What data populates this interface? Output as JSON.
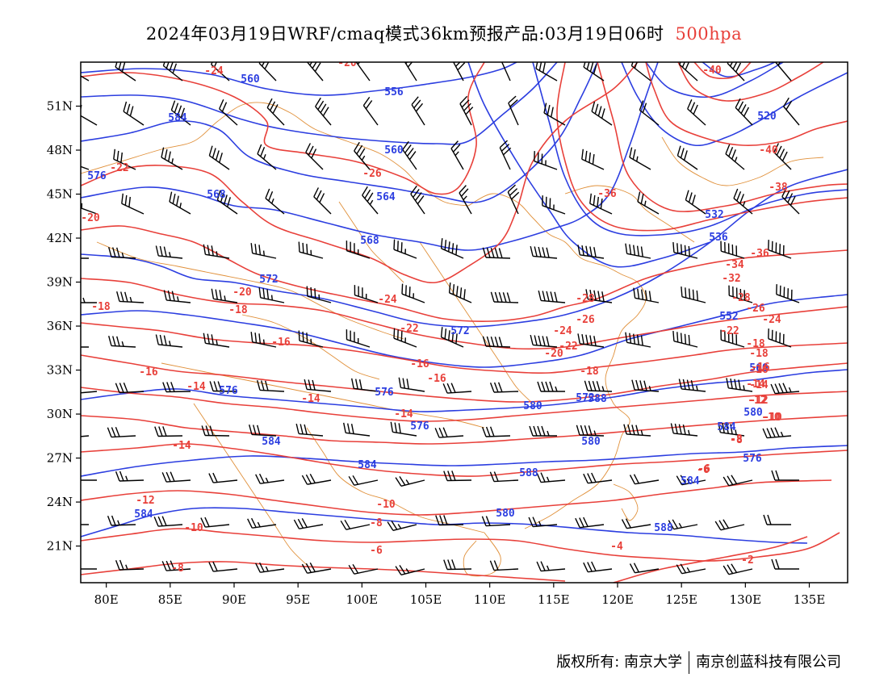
{
  "title": {
    "text": "2024年03月19日WRF/cmaq模式36km预报产品:03月19日06时",
    "level": "500hpa"
  },
  "colors": {
    "height_contour": "#2c3ee0",
    "temp_contour": "#e8403a",
    "border": "#e0903a",
    "barb": "#000000"
  },
  "lat_labels": [
    "51N",
    "48N",
    "45N",
    "42N",
    "39N",
    "36N",
    "33N",
    "30N",
    "27N",
    "24N",
    "21N"
  ],
  "lat_values": [
    51,
    48,
    45,
    42,
    39,
    36,
    33,
    30,
    27,
    24,
    21
  ],
  "lon_labels": [
    "80E",
    "85E",
    "90E",
    "95E",
    "100E",
    "105E",
    "110E",
    "115E",
    "120E",
    "125E",
    "130E",
    "135E"
  ],
  "lon_values": [
    80,
    85,
    90,
    95,
    100,
    105,
    110,
    115,
    120,
    125,
    130,
    135
  ],
  "height_labels": [
    "560",
    "556",
    "584",
    "560",
    "568",
    "564",
    "568",
    "572",
    "572",
    "576",
    "576",
    "576",
    "580",
    "584",
    "584",
    "588",
    "584",
    "580",
    "580",
    "576",
    "584",
    "572",
    "552",
    "532",
    "536",
    "520",
    "588",
    "588",
    "580",
    "560",
    "584",
    "576"
  ],
  "temp_labels": [
    "-24",
    "-20",
    "-22",
    "-26",
    "-20",
    "-18",
    "-20",
    "-18",
    "-16",
    "-16",
    "-14",
    "-14",
    "-14",
    "-12",
    "-10",
    "-8",
    "-24",
    "-22",
    "-20",
    "-18",
    "-16",
    "-16",
    "-14",
    "-10",
    "-8",
    "-6",
    "-28",
    "-26",
    "-24",
    "-22",
    "-18",
    "-16",
    "-14",
    "-12",
    "-10",
    "-8",
    "-6",
    "-4",
    "-2",
    "-40",
    "-40",
    "-38",
    "-36",
    "-36",
    "-34",
    "-32",
    "-28",
    "-26",
    "-24",
    "-22",
    "-18",
    "-16",
    "-14",
    "-12",
    "-10",
    "-8",
    "-6"
  ],
  "footer": {
    "left": "版权所有: 南京大学",
    "right": "南京创蓝科技有限公司"
  }
}
